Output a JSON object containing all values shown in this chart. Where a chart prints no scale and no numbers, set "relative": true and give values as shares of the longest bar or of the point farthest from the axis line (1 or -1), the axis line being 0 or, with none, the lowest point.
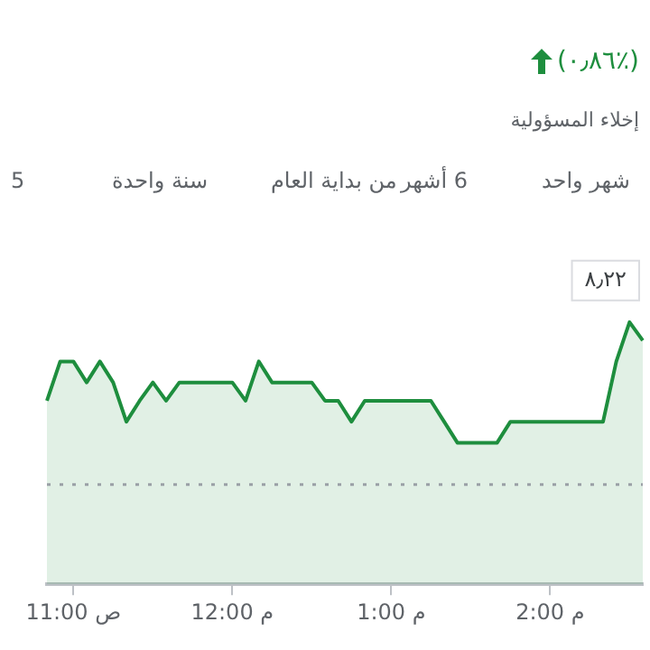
{
  "chart_data": {
    "type": "area",
    "relative": true,
    "legend": false,
    "marker": "none",
    "line_style": "solid",
    "annotations": [
      "(٠٫٨٦٪)",
      "إخلاء المسؤولية",
      "شهر واحد",
      "6 أشهر",
      "من بداية العام",
      "سنة واحدة",
      "5",
      "٨٫٢٢"
    ],
    "categories": [
      null,
      null,
      "11:00 ص",
      null,
      null,
      null,
      null,
      null,
      null,
      null,
      null,
      null,
      null,
      null,
      "12:00 م",
      null,
      null,
      null,
      null,
      null,
      null,
      null,
      null,
      null,
      null,
      null,
      "1:00 م",
      null,
      null,
      null,
      null,
      null,
      null,
      null,
      null,
      null,
      null,
      null,
      "2:00 م",
      null,
      null,
      null,
      null,
      null,
      null,
      null
    ],
    "series": [
      {
        "color": "#1e8e3e",
        "values": [
          0.7,
          0.85,
          0.85,
          0.77,
          0.85,
          0.77,
          0.62,
          0.7,
          0.77,
          0.7,
          0.77,
          0.77,
          0.77,
          0.77,
          0.77,
          0.7,
          0.85,
          0.77,
          0.77,
          0.77,
          0.77,
          0.7,
          0.7,
          0.62,
          0.7,
          0.7,
          0.7,
          0.7,
          0.7,
          0.7,
          0.62,
          0.54,
          0.54,
          0.54,
          0.54,
          0.62,
          0.62,
          0.62,
          0.62,
          0.62,
          0.62,
          0.62,
          0.62,
          0.85,
          1,
          0.93
        ]
      }
    ],
    "ref_lines": [
      {
        "axis": "y",
        "value": 0.38,
        "color": "#9aa0a6",
        "line_style": "dotted"
      }
    ]
  }
}
